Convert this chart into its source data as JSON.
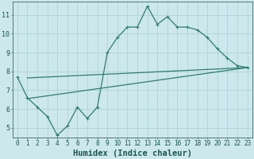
{
  "xlabel": "Humidex (Indice chaleur)",
  "bg_color": "#cce8ec",
  "grid_color": "#aacdd4",
  "line_color": "#2e7d6e",
  "xlim": [
    -0.5,
    23.5
  ],
  "ylim": [
    4.5,
    11.7
  ],
  "xticks": [
    0,
    1,
    2,
    3,
    4,
    5,
    6,
    7,
    8,
    9,
    10,
    11,
    12,
    13,
    14,
    15,
    16,
    17,
    18,
    19,
    20,
    21,
    22,
    23
  ],
  "yticks": [
    5,
    6,
    7,
    8,
    9,
    10,
    11
  ],
  "line1_x": [
    0,
    1,
    2,
    3,
    4,
    5,
    6,
    7,
    8,
    9,
    10,
    11,
    12,
    13,
    14,
    15,
    16,
    17,
    18,
    19,
    20,
    21,
    22,
    23
  ],
  "line1_y": [
    7.7,
    6.6,
    6.1,
    5.6,
    4.6,
    5.1,
    6.1,
    5.5,
    6.1,
    9.0,
    9.8,
    10.35,
    10.35,
    11.45,
    10.5,
    10.9,
    10.35,
    10.35,
    10.2,
    9.8,
    9.2,
    8.7,
    8.3,
    8.2
  ],
  "line2_x": [
    1,
    23
  ],
  "line2_y": [
    6.55,
    8.2
  ],
  "line3_x": [
    1,
    23
  ],
  "line3_y": [
    7.65,
    8.2
  ],
  "marker_size": 3,
  "linewidth": 0.9,
  "tick_fontsize": 5.5,
  "xlabel_fontsize": 7.5
}
